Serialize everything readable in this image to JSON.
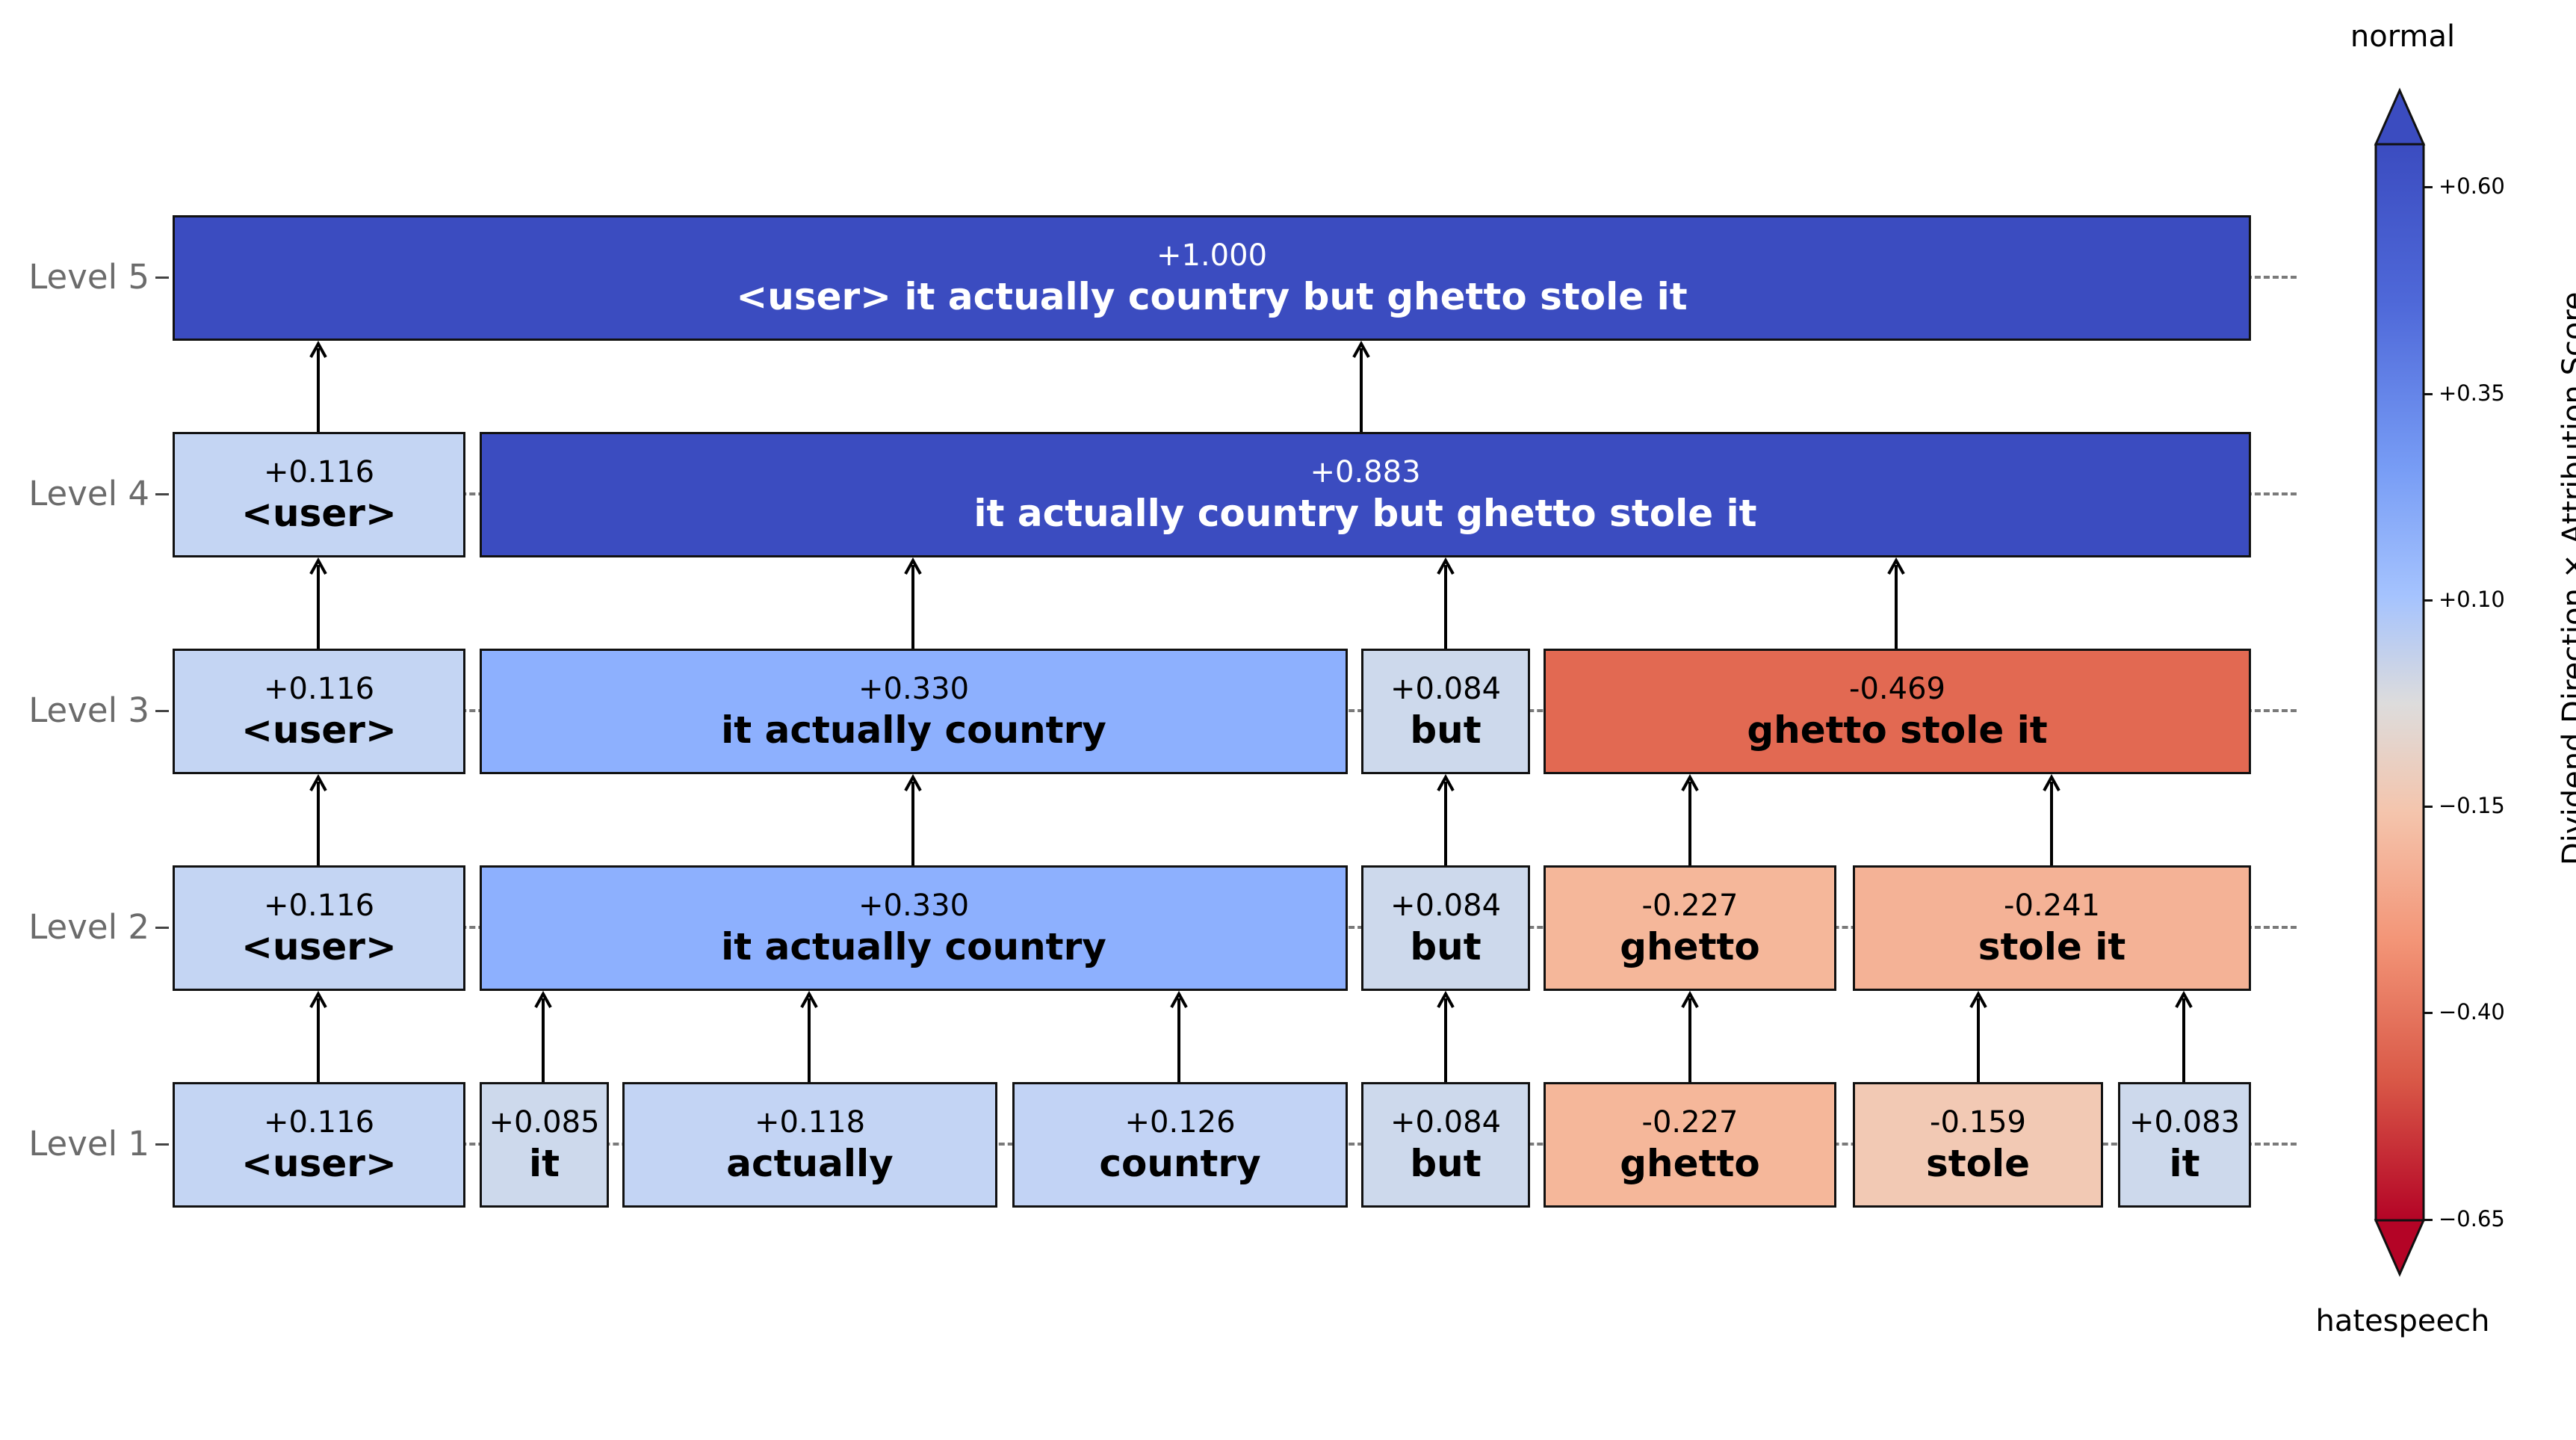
{
  "levels": [
    {
      "name": "Level 5",
      "nodes": [
        {
          "score": "+1.000",
          "label": "<user> it actually country but ghetto stole it",
          "value": 1.0,
          "color": "#3b4cc0"
        }
      ]
    },
    {
      "name": "Level 4",
      "nodes": [
        {
          "score": "+0.116",
          "label": "<user>",
          "value": 0.116,
          "color": "#c4d5f3"
        },
        {
          "score": "+0.883",
          "label": "it actually country but ghetto stole it",
          "value": 0.883,
          "color": "#3b4cc0"
        }
      ]
    },
    {
      "name": "Level 3",
      "nodes": [
        {
          "score": "+0.116",
          "label": "<user>",
          "value": 0.116,
          "color": "#c4d5f3"
        },
        {
          "score": "+0.330",
          "label": "it actually country",
          "value": 0.33,
          "color": "#8db0fe"
        },
        {
          "score": "+0.084",
          "label": "but",
          "value": 0.084,
          "color": "#cdd9ec"
        },
        {
          "score": "-0.469",
          "label": "ghetto stole it",
          "value": -0.469,
          "color": "#e26952"
        }
      ]
    },
    {
      "name": "Level 2",
      "nodes": [
        {
          "score": "+0.116",
          "label": "<user>",
          "value": 0.116,
          "color": "#c4d5f3"
        },
        {
          "score": "+0.330",
          "label": "it actually country",
          "value": 0.33,
          "color": "#8db0fe"
        },
        {
          "score": "+0.084",
          "label": "but",
          "value": 0.084,
          "color": "#cdd9ec"
        },
        {
          "score": "-0.227",
          "label": "ghetto",
          "value": -0.227,
          "color": "#f5b79a"
        },
        {
          "score": "-0.241",
          "label": "stole it",
          "value": -0.241,
          "color": "#f4b296"
        }
      ]
    },
    {
      "name": "Level 1",
      "nodes": [
        {
          "score": "+0.116",
          "label": "<user>",
          "value": 0.116,
          "color": "#c4d5f3"
        },
        {
          "score": "+0.085",
          "label": "it",
          "value": 0.085,
          "color": "#cdd9ec"
        },
        {
          "score": "+0.118",
          "label": "actually",
          "value": 0.118,
          "color": "#c3d4f4"
        },
        {
          "score": "+0.126",
          "label": "country",
          "value": 0.126,
          "color": "#c2d3f5"
        },
        {
          "score": "+0.084",
          "label": "but",
          "value": 0.084,
          "color": "#cdd9ec"
        },
        {
          "score": "-0.227",
          "label": "ghetto",
          "value": -0.227,
          "color": "#f5b79a"
        },
        {
          "score": "-0.159",
          "label": "stole",
          "value": -0.159,
          "color": "#f2c9b4"
        },
        {
          "score": "+0.083",
          "label": "it",
          "value": 0.083,
          "color": "#cdd9ec"
        }
      ]
    }
  ],
  "colorbar": {
    "top_label": "normal",
    "bottom_label": "hatespeech",
    "axis_label": "Dividend Direction × Attribution Score",
    "ticks": [
      "+0.60",
      "+0.35",
      "+0.10",
      "−0.15",
      "−0.40",
      "−0.65"
    ],
    "colormap": "coolwarm",
    "range": [
      -0.65,
      0.6
    ],
    "extend": "both"
  }
}
